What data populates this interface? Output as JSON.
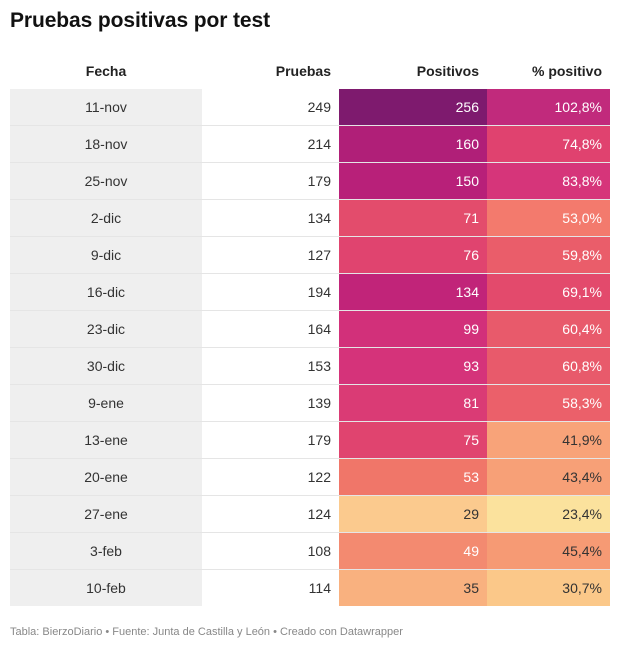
{
  "title": "Pruebas positivas por test",
  "footer": "Tabla: BierzoDiario • Fuente: Junta de Castilla y León • Creado con Datawrapper",
  "chart_data": {
    "type": "table",
    "columns": [
      "Fecha",
      "Pruebas",
      "Positivos",
      "% positivo"
    ],
    "rows": [
      {
        "fecha": "11-nov",
        "pruebas": "249",
        "positivos": "256",
        "pct": "102,8%",
        "pos_color": "#7e1a6e",
        "pct_color": "#c12a7c",
        "pos_text": "#ffffff",
        "pct_text": "#ffffff"
      },
      {
        "fecha": "18-nov",
        "pruebas": "214",
        "positivos": "160",
        "pct": "74,8%",
        "pos_color": "#b01f78",
        "pct_color": "#e0426f",
        "pos_text": "#ffffff",
        "pct_text": "#ffffff"
      },
      {
        "fecha": "25-nov",
        "pruebas": "179",
        "positivos": "150",
        "pct": "83,8%",
        "pos_color": "#b82079",
        "pct_color": "#d6357a",
        "pos_text": "#ffffff",
        "pct_text": "#ffffff"
      },
      {
        "fecha": "2-dic",
        "pruebas": "134",
        "positivos": "71",
        "pct": "53,0%",
        "pos_color": "#e34c6c",
        "pct_color": "#f37a6d",
        "pos_text": "#ffffff",
        "pct_text": "#ffffff"
      },
      {
        "fecha": "9-dic",
        "pruebas": "127",
        "positivos": "76",
        "pct": "59,8%",
        "pos_color": "#e0446f",
        "pct_color": "#ea5d6a",
        "pos_text": "#ffffff",
        "pct_text": "#ffffff"
      },
      {
        "fecha": "16-dic",
        "pruebas": "194",
        "positivos": "134",
        "pct": "69,1%",
        "pos_color": "#c12479",
        "pct_color": "#e34a6c",
        "pos_text": "#ffffff",
        "pct_text": "#ffffff"
      },
      {
        "fecha": "23-dic",
        "pruebas": "164",
        "positivos": "99",
        "pct": "60,4%",
        "pos_color": "#d2307a",
        "pct_color": "#e85a6b",
        "pos_text": "#ffffff",
        "pct_text": "#ffffff"
      },
      {
        "fecha": "30-dic",
        "pruebas": "153",
        "positivos": "93",
        "pct": "60,8%",
        "pos_color": "#d5337a",
        "pct_color": "#e85a6b",
        "pos_text": "#ffffff",
        "pct_text": "#ffffff"
      },
      {
        "fecha": "9-ene",
        "pruebas": "139",
        "positivos": "81",
        "pct": "58,3%",
        "pos_color": "#da3b75",
        "pct_color": "#eb606a",
        "pos_text": "#ffffff",
        "pct_text": "#ffffff"
      },
      {
        "fecha": "13-ene",
        "pruebas": "179",
        "positivos": "75",
        "pct": "41,9%",
        "pos_color": "#e0446f",
        "pct_color": "#f8a379",
        "pos_text": "#ffffff",
        "pct_text": "#333333"
      },
      {
        "fecha": "20-ene",
        "pruebas": "122",
        "positivos": "53",
        "pct": "43,4%",
        "pos_color": "#f07669",
        "pct_color": "#f7a077",
        "pos_text": "#ffffff",
        "pct_text": "#333333"
      },
      {
        "fecha": "27-ene",
        "pruebas": "124",
        "positivos": "29",
        "pct": "23,4%",
        "pos_color": "#fbca8e",
        "pct_color": "#fbe29d",
        "pos_text": "#333333",
        "pct_text": "#333333"
      },
      {
        "fecha": "3-feb",
        "pruebas": "108",
        "positivos": "49",
        "pct": "45,4%",
        "pos_color": "#f38a70",
        "pct_color": "#f69a74",
        "pos_text": "#ffffff",
        "pct_text": "#333333"
      },
      {
        "fecha": "10-feb",
        "pruebas": "114",
        "positivos": "35",
        "pct": "30,7%",
        "pos_color": "#f9b17f",
        "pct_color": "#fbc889",
        "pos_text": "#333333",
        "pct_text": "#333333"
      }
    ]
  }
}
